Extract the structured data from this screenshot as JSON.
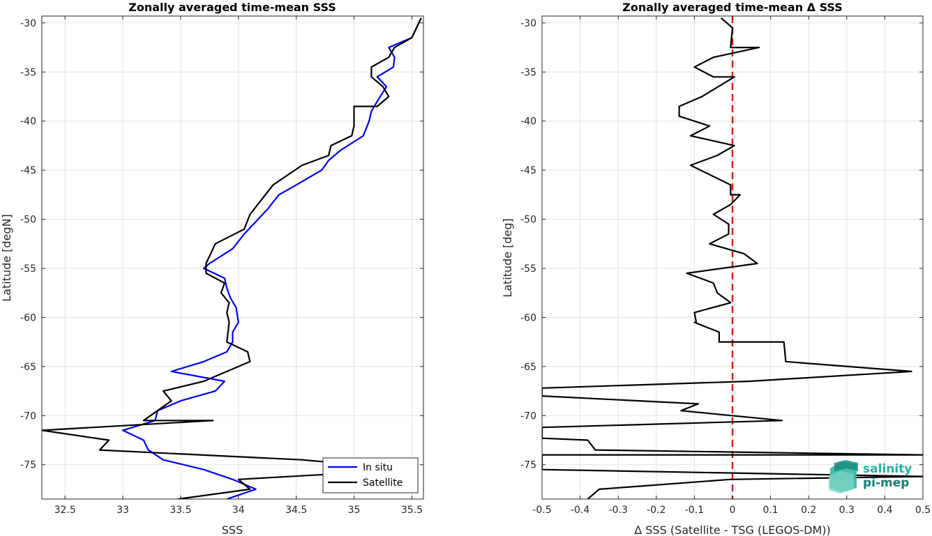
{
  "chart_data": [
    {
      "type": "line",
      "title": "Zonally averaged time-mean SSS",
      "xlabel": "SSS",
      "ylabel": "Latitude [degN]",
      "xlim": [
        32.3,
        35.6
      ],
      "ylim": [
        -78.5,
        -29.3
      ],
      "xticks": [
        "32.5",
        "33",
        "33.5",
        "34",
        "34.5",
        "35",
        "35.5"
      ],
      "xtick_values": [
        32.5,
        33,
        33.5,
        34,
        34.5,
        35,
        35.5
      ],
      "yticks": [
        "-30",
        "-35",
        "-40",
        "-45",
        "-50",
        "-55",
        "-60",
        "-65",
        "-70",
        "-75"
      ],
      "ytick_values": [
        -30,
        -35,
        -40,
        -45,
        -50,
        -55,
        -60,
        -65,
        -70,
        -75
      ],
      "grid": true,
      "legend": "bottom-right",
      "series": [
        {
          "name": "In situ",
          "color": "#0000ee",
          "x": [
            35.58,
            35.5,
            35.3,
            35.35,
            35.34,
            35.2,
            35.28,
            35.2,
            35.15,
            35.13,
            35.08,
            34.88,
            34.78,
            34.72,
            34.5,
            34.35,
            34.25,
            34.05,
            33.95,
            33.75,
            33.7,
            33.88,
            33.9,
            33.93,
            33.98,
            34.0,
            33.95,
            33.95,
            33.9,
            33.7,
            33.42,
            33.88,
            33.8,
            33.5,
            33.3,
            33.28,
            33.0,
            33.18,
            33.22,
            33.35,
            33.7,
            33.95,
            34.15,
            33.9
          ],
          "y": [
            -29.5,
            -31.5,
            -32.5,
            -33.5,
            -34.5,
            -35.5,
            -36.5,
            -38.0,
            -39.0,
            -40.0,
            -41.5,
            -43.0,
            -44.0,
            -45.0,
            -46.5,
            -47.5,
            -49.0,
            -51.5,
            -53.0,
            -54.5,
            -55.0,
            -56.0,
            -57.0,
            -58.0,
            -59.0,
            -60.5,
            -61.5,
            -62.5,
            -63.5,
            -64.5,
            -65.5,
            -66.5,
            -67.5,
            -68.5,
            -69.5,
            -70.5,
            -71.5,
            -72.5,
            -73.5,
            -74.5,
            -75.5,
            -76.5,
            -77.5,
            -78.5
          ]
        },
        {
          "name": "Satellite",
          "color": "#000000",
          "x": [
            35.58,
            35.5,
            35.35,
            35.3,
            35.15,
            35.15,
            35.25,
            35.3,
            35.2,
            35.0,
            35.0,
            34.98,
            34.8,
            34.78,
            34.55,
            34.3,
            34.1,
            34.05,
            33.8,
            33.72,
            33.72,
            33.88,
            33.85,
            33.92,
            33.9,
            33.92,
            33.9,
            34.08,
            34.1,
            33.7,
            33.35,
            33.42,
            33.3,
            33.18,
            33.78,
            32.3,
            32.88,
            32.8,
            34.55,
            35.5,
            34.0,
            34.1,
            33.48
          ],
          "y": [
            -29.5,
            -31.5,
            -32.5,
            -33.5,
            -34.5,
            -35.5,
            -36.5,
            -37.5,
            -38.5,
            -38.5,
            -40.5,
            -41.5,
            -42.5,
            -43.5,
            -44.5,
            -46.5,
            -49.5,
            -51.0,
            -52.5,
            -54.5,
            -55.5,
            -56.5,
            -57.5,
            -58.5,
            -59.5,
            -60.5,
            -62.5,
            -63.5,
            -64.5,
            -66.5,
            -67.5,
            -68.5,
            -69.5,
            -70.5,
            -70.5,
            -71.5,
            -72.5,
            -73.5,
            -74.5,
            -75.5,
            -76.5,
            -77.5,
            -78.5
          ]
        }
      ]
    },
    {
      "type": "line",
      "title": "Zonally averaged time-mean Δ SSS",
      "xlabel": "Δ SSS (Satellite - TSG (LEGOS-DM))",
      "ylabel": "Latitude [deg]",
      "xlim": [
        -0.5,
        0.5
      ],
      "ylim": [
        -78.5,
        -29.3
      ],
      "xticks": [
        "-0.5",
        "-0.4",
        "-0.3",
        "-0.2",
        "-0.1",
        "0",
        "0.1",
        "0.2",
        "0.3",
        "0.4",
        "0.5"
      ],
      "xtick_values": [
        -0.5,
        -0.4,
        -0.3,
        -0.2,
        -0.1,
        0,
        0.1,
        0.2,
        0.3,
        0.4,
        0.5
      ],
      "yticks": [
        "-30",
        "-35",
        "-40",
        "-45",
        "-50",
        "-55",
        "-60",
        "-65",
        "-70",
        "-75"
      ],
      "ytick_values": [
        -30,
        -35,
        -40,
        -45,
        -50,
        -55,
        -60,
        -65,
        -70,
        -75
      ],
      "grid": true,
      "reference_line": {
        "x": 0,
        "color": "#e8191a",
        "style": "dashed"
      },
      "series": [
        {
          "name": "",
          "color": "#000000",
          "x": [
            -0.03,
            0.0,
            -0.005,
            0.07,
            -0.05,
            -0.1,
            -0.05,
            0.005,
            -0.08,
            -0.14,
            -0.14,
            -0.06,
            -0.11,
            0.005,
            -0.04,
            -0.11,
            -0.005,
            -0.005,
            0.02,
            -0.005,
            -0.05,
            -0.01,
            -0.01,
            -0.06,
            0.03,
            0.065,
            -0.12,
            -0.05,
            -0.04,
            -0.005,
            -0.1,
            -0.095,
            -0.1,
            -0.035,
            -0.035,
            0.135,
            0.14,
            0.47,
            0.045,
            -0.5,
            -0.5,
            -0.09,
            -0.135,
            0.13,
            -0.5,
            -0.5,
            -0.38,
            -0.36,
            0.5,
            -0.5,
            -0.5,
            0.5,
            -0.005,
            -0.35,
            -0.38
          ],
          "y": [
            -29.5,
            -30.5,
            -32.5,
            -32.5,
            -33.5,
            -34.5,
            -35.5,
            -35.5,
            -37.5,
            -38.5,
            -39.5,
            -40.5,
            -41.5,
            -42.5,
            -43.5,
            -44.5,
            -46.5,
            -47.5,
            -47.5,
            -48.5,
            -49.5,
            -50.5,
            -51.5,
            -52.5,
            -53.5,
            -54.5,
            -55.5,
            -56.5,
            -57.5,
            -58.5,
            -59.5,
            -60.5,
            -60.5,
            -61.5,
            -62.5,
            -62.5,
            -64.5,
            -65.5,
            -66.5,
            -67.2,
            -68.0,
            -68.8,
            -69.5,
            -70.5,
            -71.2,
            -72.3,
            -72.5,
            -73.5,
            -74.0,
            -74.0,
            -75.5,
            -76.2,
            -76.5,
            -77.5,
            -78.5
          ]
        }
      ]
    }
  ],
  "legend": {
    "entries": [
      "In situ",
      "Satellite"
    ]
  },
  "logo": {
    "line1": "salinity",
    "line2": "pi-mep"
  }
}
